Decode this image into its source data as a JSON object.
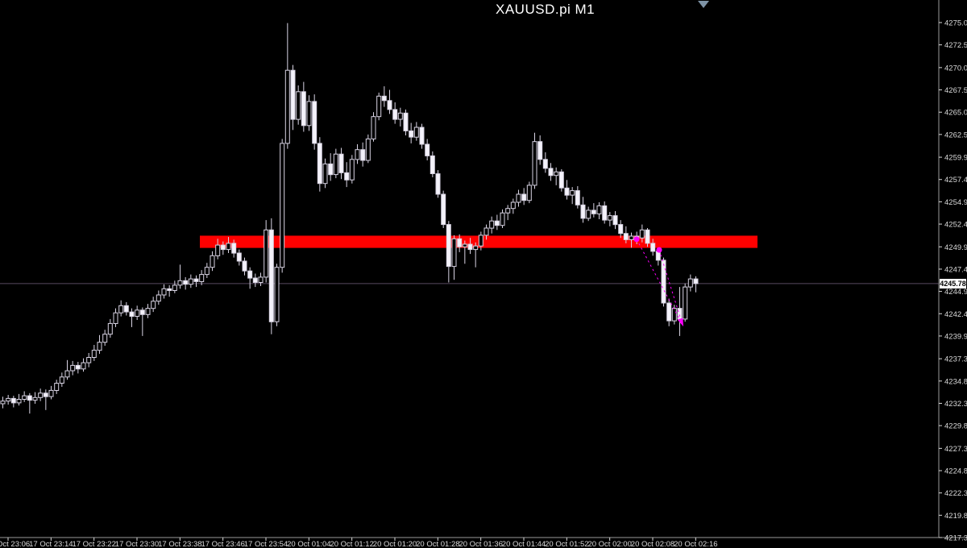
{
  "header": {
    "title": "XAUUSD.pi M1"
  },
  "colors": {
    "background": "#000000",
    "candle_stroke": "#d9d4e4",
    "bear_fill": "#f4f2fa",
    "bull_fill": "#000000",
    "axis_line": "#9a9a9a",
    "axis_text": "#d9d9d9",
    "zone_red": "#fe0000",
    "trade_magenta": "#ff00ff",
    "bid_line": "#584a60",
    "shift_marker": "#7e93a6",
    "price_tag_bg": "#ffffff",
    "price_tag_text": "#000000"
  },
  "price_axis": {
    "labels": [
      "4275.05",
      "4272.55",
      "4270.00",
      "4267.50",
      "4265.00",
      "4262.50",
      "4259.95",
      "4257.45",
      "4254.95",
      "4252.45",
      "4249.90",
      "4247.40",
      "4244.90",
      "4242.40",
      "4239.90",
      "4237.35",
      "4234.85",
      "4232.35",
      "4229.85",
      "4227.30",
      "4224.80",
      "4222.30",
      "4219.80",
      "4217.30"
    ],
    "current_price": "4245.78"
  },
  "time_axis": {
    "labels": [
      "17 Oct 23:06",
      "17 Oct 23:14",
      "17 Oct 23:22",
      "17 Oct 23:30",
      "17 Oct 23:38",
      "17 Oct 23:46",
      "17 Oct 23:54",
      "20 Oct 01:04",
      "20 Oct 01:12",
      "20 Oct 01:20",
      "20 Oct 01:28",
      "20 Oct 01:36",
      "20 Oct 01:44",
      "20 Oct 01:52",
      "20 Oct 02:00",
      "20 Oct 02:08",
      "20 Oct 02:16"
    ]
  },
  "chart_data": {
    "type": "candlestick",
    "title": "XAUUSD.pi M1",
    "symbol": "XAUUSD.pi",
    "timeframe": "M1",
    "ylim": [
      4216.0,
      4277.5
    ],
    "grid": false,
    "bid_price": 4245.78,
    "bars_ohlc": [
      [
        4232.3,
        4233.1,
        4231.8,
        4232.6
      ],
      [
        4232.6,
        4233.3,
        4232.2,
        4232.9
      ],
      [
        4232.9,
        4233.2,
        4231.9,
        4232.4
      ],
      [
        4232.4,
        4233.4,
        4232.1,
        4232.8
      ],
      [
        4232.8,
        4233.7,
        4232.5,
        4233.2
      ],
      [
        4233.2,
        4233.5,
        4231.2,
        4232.7
      ],
      [
        4232.7,
        4233.6,
        4232.3,
        4233.0
      ],
      [
        4233.0,
        4234.0,
        4232.6,
        4233.5
      ],
      [
        4233.5,
        4233.9,
        4231.6,
        4233.1
      ],
      [
        4233.1,
        4234.3,
        4232.8,
        4233.8
      ],
      [
        4233.8,
        4235.0,
        4233.4,
        4234.6
      ],
      [
        4234.6,
        4235.8,
        4234.2,
        4235.3
      ],
      [
        4235.3,
        4237.2,
        4235.0,
        4236.0
      ],
      [
        4236.0,
        4237.1,
        4235.5,
        4236.6
      ],
      [
        4236.6,
        4237.0,
        4235.7,
        4236.2
      ],
      [
        4236.2,
        4237.4,
        4235.9,
        4236.9
      ],
      [
        4236.9,
        4238.0,
        4236.4,
        4237.5
      ],
      [
        4237.5,
        4238.9,
        4237.1,
        4238.3
      ],
      [
        4238.3,
        4240.0,
        4237.9,
        4239.2
      ],
      [
        4239.2,
        4240.6,
        4238.8,
        4240.1
      ],
      [
        4240.1,
        4241.8,
        4239.7,
        4241.3
      ],
      [
        4241.3,
        4243.0,
        4240.9,
        4242.5
      ],
      [
        4242.5,
        4243.9,
        4242.1,
        4243.3
      ],
      [
        4243.3,
        4243.7,
        4242.2,
        4242.6
      ],
      [
        4242.6,
        4243.0,
        4240.9,
        4242.1
      ],
      [
        4242.1,
        4243.3,
        4241.7,
        4242.8
      ],
      [
        4242.8,
        4243.1,
        4239.9,
        4242.3
      ],
      [
        4242.3,
        4243.5,
        4241.9,
        4243.0
      ],
      [
        4243.0,
        4244.3,
        4242.6,
        4243.8
      ],
      [
        4243.8,
        4245.0,
        4243.4,
        4244.5
      ],
      [
        4244.5,
        4245.7,
        4244.1,
        4245.2
      ],
      [
        4245.2,
        4245.6,
        4244.3,
        4245.0
      ],
      [
        4245.0,
        4246.1,
        4244.7,
        4245.6
      ],
      [
        4245.6,
        4247.9,
        4245.2,
        4246.1
      ],
      [
        4246.1,
        4246.5,
        4245.1,
        4245.7
      ],
      [
        4245.7,
        4246.8,
        4245.3,
        4246.3
      ],
      [
        4246.3,
        4246.7,
        4245.4,
        4246.0
      ],
      [
        4246.0,
        4247.3,
        4245.6,
        4246.8
      ],
      [
        4246.8,
        4248.1,
        4246.4,
        4247.6
      ],
      [
        4247.6,
        4249.4,
        4247.2,
        4248.9
      ],
      [
        4248.9,
        4250.8,
        4248.5,
        4250.1
      ],
      [
        4250.1,
        4250.5,
        4249.0,
        4249.6
      ],
      [
        4249.6,
        4251.0,
        4249.2,
        4250.3
      ],
      [
        4250.3,
        4250.7,
        4248.7,
        4249.2
      ],
      [
        4249.2,
        4249.6,
        4247.8,
        4248.3
      ],
      [
        4248.3,
        4248.7,
        4246.7,
        4247.2
      ],
      [
        4247.2,
        4247.6,
        4245.2,
        4246.4
      ],
      [
        4246.4,
        4246.9,
        4245.4,
        4245.9
      ],
      [
        4245.9,
        4247.0,
        4245.5,
        4246.5
      ],
      [
        4246.5,
        4252.9,
        4245.9,
        4251.8
      ],
      [
        4251.8,
        4253.1,
        4240.1,
        4241.5
      ],
      [
        4241.5,
        4248.0,
        4241.0,
        4247.6
      ],
      [
        4247.6,
        4262.0,
        4247.0,
        4261.5
      ],
      [
        4261.5,
        4275.0,
        4260.9,
        4269.7
      ],
      [
        4269.7,
        4270.3,
        4263.0,
        4264.2
      ],
      [
        4264.2,
        4268.0,
        4263.6,
        4267.3
      ],
      [
        4267.3,
        4268.4,
        4262.8,
        4263.5
      ],
      [
        4263.5,
        4266.9,
        4262.9,
        4266.2
      ],
      [
        4266.2,
        4267.0,
        4260.8,
        4261.5
      ],
      [
        4261.5,
        4262.2,
        4256.1,
        4257.0
      ],
      [
        4257.0,
        4259.8,
        4256.5,
        4259.2
      ],
      [
        4259.2,
        4260.4,
        4257.3,
        4258.0
      ],
      [
        4258.0,
        4260.9,
        4257.6,
        4260.3
      ],
      [
        4260.3,
        4261.0,
        4257.5,
        4258.2
      ],
      [
        4258.2,
        4259.4,
        4256.6,
        4257.4
      ],
      [
        4257.4,
        4260.2,
        4257.0,
        4259.7
      ],
      [
        4259.7,
        4261.4,
        4259.2,
        4260.8
      ],
      [
        4260.8,
        4261.6,
        4258.9,
        4259.6
      ],
      [
        4259.6,
        4262.5,
        4259.3,
        4262.0
      ],
      [
        4262.0,
        4265.0,
        4261.7,
        4264.5
      ],
      [
        4264.5,
        4267.2,
        4264.1,
        4266.8
      ],
      [
        4266.8,
        4267.9,
        4265.6,
        4266.3
      ],
      [
        4266.3,
        4267.5,
        4264.8,
        4265.3
      ],
      [
        4265.3,
        4266.1,
        4263.7,
        4264.2
      ],
      [
        4264.2,
        4265.5,
        4263.4,
        4264.9
      ],
      [
        4264.9,
        4265.3,
        4262.4,
        4262.9
      ],
      [
        4262.9,
        4263.8,
        4261.5,
        4262.2
      ],
      [
        4262.2,
        4263.9,
        4261.8,
        4263.3
      ],
      [
        4263.3,
        4263.7,
        4260.9,
        4261.4
      ],
      [
        4261.4,
        4262.0,
        4259.6,
        4260.1
      ],
      [
        4260.1,
        4260.6,
        4257.7,
        4258.1
      ],
      [
        4258.1,
        4258.5,
        4255.4,
        4255.8
      ],
      [
        4255.8,
        4256.2,
        4252.0,
        4252.4
      ],
      [
        4252.4,
        4252.8,
        4245.9,
        4247.7
      ],
      [
        4247.7,
        4251.2,
        4246.2,
        4250.8
      ],
      [
        4250.8,
        4251.3,
        4249.3,
        4249.9
      ],
      [
        4249.9,
        4250.6,
        4248.0,
        4250.2
      ],
      [
        4250.2,
        4250.9,
        4249.1,
        4249.6
      ],
      [
        4249.6,
        4250.4,
        4247.6,
        4250.0
      ],
      [
        4250.0,
        4251.6,
        4249.5,
        4251.2
      ],
      [
        4251.2,
        4252.4,
        4250.7,
        4252.0
      ],
      [
        4252.0,
        4253.3,
        4251.4,
        4252.8
      ],
      [
        4252.8,
        4253.5,
        4251.8,
        4252.3
      ],
      [
        4252.3,
        4254.1,
        4252.0,
        4253.7
      ],
      [
        4253.7,
        4254.6,
        4252.9,
        4254.2
      ],
      [
        4254.2,
        4255.3,
        4253.6,
        4254.9
      ],
      [
        4254.9,
        4256.3,
        4254.4,
        4255.8
      ],
      [
        4255.8,
        4256.5,
        4254.6,
        4255.1
      ],
      [
        4255.1,
        4257.2,
        4254.8,
        4256.8
      ],
      [
        4256.8,
        4262.7,
        4256.4,
        4261.7
      ],
      [
        4261.7,
        4262.4,
        4259.1,
        4259.7
      ],
      [
        4259.7,
        4260.5,
        4258.2,
        4258.7
      ],
      [
        4258.7,
        4259.3,
        4257.3,
        4257.9
      ],
      [
        4257.9,
        4258.8,
        4256.8,
        4258.3
      ],
      [
        4258.3,
        4258.6,
        4256.1,
        4256.5
      ],
      [
        4256.5,
        4257.4,
        4255.2,
        4255.7
      ],
      [
        4255.7,
        4256.6,
        4254.7,
        4256.2
      ],
      [
        4256.2,
        4256.7,
        4254.2,
        4254.6
      ],
      [
        4254.6,
        4255.5,
        4252.6,
        4253.1
      ],
      [
        4253.1,
        4254.4,
        4252.8,
        4254.0
      ],
      [
        4254.0,
        4254.8,
        4253.2,
        4253.6
      ],
      [
        4253.6,
        4254.9,
        4253.0,
        4254.5
      ],
      [
        4254.5,
        4255.0,
        4252.5,
        4252.9
      ],
      [
        4252.9,
        4253.8,
        4252.2,
        4253.4
      ],
      [
        4253.4,
        4253.9,
        4251.9,
        4252.4
      ],
      [
        4252.4,
        4252.9,
        4250.9,
        4251.4
      ],
      [
        4251.4,
        4252.2,
        4250.3,
        4250.7
      ],
      [
        4250.7,
        4251.5,
        4249.8,
        4251.1
      ],
      [
        4251.1,
        4251.6,
        4250.2,
        4250.9
      ],
      [
        4250.9,
        4252.4,
        4250.4,
        4251.8
      ],
      [
        4251.8,
        4252.0,
        4249.9,
        4250.3
      ],
      [
        4250.3,
        4250.8,
        4248.9,
        4249.4
      ],
      [
        4249.4,
        4249.8,
        4247.8,
        4248.4
      ],
      [
        4248.4,
        4248.7,
        4243.2,
        4243.6
      ],
      [
        4243.6,
        4244.1,
        4241.0,
        4241.6
      ],
      [
        4241.6,
        4243.4,
        4241.2,
        4243.0
      ],
      [
        4243.0,
        4245.4,
        4239.9,
        4241.8
      ],
      [
        4241.8,
        4245.8,
        4241.5,
        4245.4
      ],
      [
        4245.4,
        4246.8,
        4244.9,
        4246.3
      ],
      [
        4246.3,
        4246.6,
        4244.8,
        4245.78
      ]
    ],
    "objects": {
      "resistance_zone": {
        "price_top": 4251.15,
        "price_bottom": 4249.78,
        "x_start": 248,
        "x_end": 940
      },
      "current_price_line": {
        "price": 4245.78
      },
      "trades": [
        {
          "entry_x": 790,
          "entry_price": 4250.75,
          "close_x": 847,
          "close_price": 4241.15
        },
        {
          "entry_x": 818,
          "entry_price": 4249.55,
          "close_x": 847,
          "close_price": 4241.15
        }
      ],
      "shift_marker": {
        "x": 873
      }
    },
    "axis_price_labels": [
      4275.05,
      4272.55,
      4270.0,
      4267.5,
      4265.0,
      4262.5,
      4259.95,
      4257.45,
      4254.95,
      4252.45,
      4249.9,
      4247.4,
      4244.9,
      4242.4,
      4239.9,
      4237.35,
      4234.85,
      4232.35,
      4229.85,
      4227.3,
      4224.8,
      4222.3,
      4219.8,
      4217.3
    ]
  }
}
